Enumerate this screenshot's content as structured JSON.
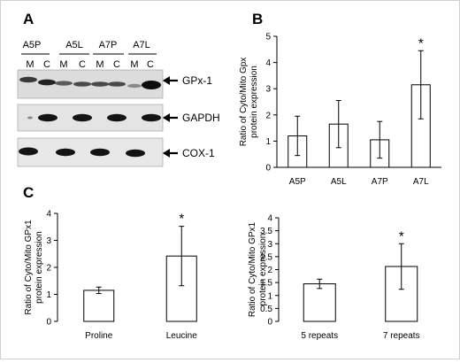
{
  "panels": {
    "a": {
      "letter": "A",
      "groups": [
        "A5P",
        "A5L",
        "A7P",
        "A7L"
      ],
      "lane_labels": [
        "M",
        "C"
      ],
      "blots": [
        "GPx-1",
        "GAPDH",
        "COX-1"
      ]
    },
    "b": {
      "letter": "B"
    },
    "c": {
      "letter": "C"
    }
  },
  "chart_data": [
    {
      "id": "b",
      "type": "bar",
      "categories": [
        "A5P",
        "A5L",
        "A7P",
        "A7L"
      ],
      "values": [
        1.2,
        1.65,
        1.05,
        3.15
      ],
      "errors": [
        0.75,
        0.9,
        0.7,
        1.3
      ],
      "significance": [
        "",
        "",
        "",
        "*"
      ],
      "ylabel": "Ratio of Cyto/Mito Gpx protein expression",
      "ylim": [
        0,
        5
      ],
      "yticks": [
        0,
        1,
        2,
        3,
        4,
        5
      ],
      "grid": false
    },
    {
      "id": "c-left",
      "type": "bar",
      "categories": [
        "Proline",
        "Leucine"
      ],
      "values": [
        1.15,
        2.42
      ],
      "errors": [
        0.12,
        1.1
      ],
      "significance": [
        "",
        "*"
      ],
      "ylabel": "Ratio of Cyto/Mito GPx1 protein expression",
      "ylim": [
        0,
        4
      ],
      "yticks": [
        0,
        1,
        2,
        3,
        4
      ],
      "grid": false
    },
    {
      "id": "c-right",
      "type": "bar",
      "categories": [
        "5 repeats",
        "7 repeats"
      ],
      "values": [
        1.45,
        2.12
      ],
      "errors": [
        0.18,
        0.88
      ],
      "significance": [
        "",
        "*"
      ],
      "ylabel": "Ratio of Cyto/Mito GPx1 protein expression",
      "ylim": [
        0,
        4
      ],
      "yticks": [
        0,
        0.5,
        1,
        1.5,
        2,
        2.5,
        3,
        3.5,
        4
      ],
      "grid": false
    }
  ]
}
